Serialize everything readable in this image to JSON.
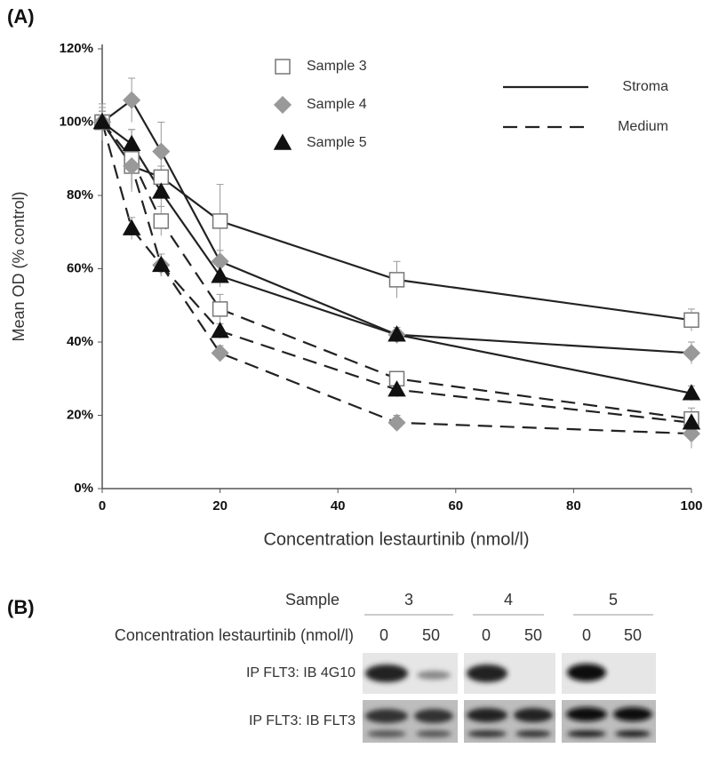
{
  "chart_data": {
    "type": "line",
    "panel_label": "(A)",
    "x_label": "Concentration lestaurtinib (nmol/l)",
    "y_label": "Mean OD (% control)",
    "x": [
      0,
      5,
      10,
      20,
      50,
      100
    ],
    "xlim": [
      0,
      100
    ],
    "xticks": [
      0,
      20,
      40,
      60,
      80,
      100
    ],
    "ylim": [
      0,
      120
    ],
    "yticks": [
      {
        "value": 0,
        "label": "0%"
      },
      {
        "value": 20,
        "label": "20%"
      },
      {
        "value": 40,
        "label": "40%"
      },
      {
        "value": 60,
        "label": "60%"
      },
      {
        "value": 80,
        "label": "80%"
      },
      {
        "value": 100,
        "label": "100%"
      },
      {
        "value": 120,
        "label": "120%"
      }
    ],
    "grid": false,
    "conditions": [
      {
        "name": "Stroma",
        "dash": "none"
      },
      {
        "name": "Medium",
        "dash": "16 9"
      }
    ],
    "samples": [
      {
        "name": "Sample 3",
        "marker": "square",
        "color": "#ffffff",
        "edge": "#777777",
        "series": [
          {
            "values": [
              100,
              88,
              85,
              73,
              57,
              46
            ],
            "errors": [
              5,
              7,
              3,
              10,
              5,
              3
            ]
          },
          {
            "values": [
              100,
              90,
              73,
              49,
              30,
              19
            ],
            "errors": [
              3,
              8,
              4,
              4,
              2,
              3
            ]
          }
        ]
      },
      {
        "name": "Sample 4",
        "marker": "diamond",
        "color": "#999999",
        "edge": "#999999",
        "series": [
          {
            "values": [
              100,
              106,
              92,
              62,
              42,
              37
            ],
            "errors": [
              4,
              6,
              8,
              3,
              2,
              3
            ]
          },
          {
            "values": [
              100,
              88,
              61,
              37,
              18,
              15
            ],
            "errors": [
              3,
              5,
              3,
              2,
              2,
              4
            ]
          }
        ]
      },
      {
        "name": "Sample 5",
        "marker": "triangle",
        "color": "#111111",
        "edge": "#111111",
        "series": [
          {
            "values": [
              100,
              94,
              81,
              58,
              42,
              26
            ],
            "errors": [
              3,
              4,
              4,
              3,
              2,
              2
            ]
          },
          {
            "values": [
              100,
              71,
              61,
              43,
              27,
              18
            ],
            "errors": [
              3,
              3,
              3,
              2,
              2,
              2
            ]
          }
        ]
      }
    ]
  },
  "blot": {
    "panel_label": "(B)",
    "sample_header": "Sample",
    "samples": [
      "3",
      "4",
      "5"
    ],
    "concentration_label": "Concentration lestaurtinib (nmol/l)",
    "lanes": [
      "0",
      "50"
    ],
    "rows": [
      "IP FLT3: IB 4G10",
      "IP FLT3: IB FLT3"
    ]
  }
}
